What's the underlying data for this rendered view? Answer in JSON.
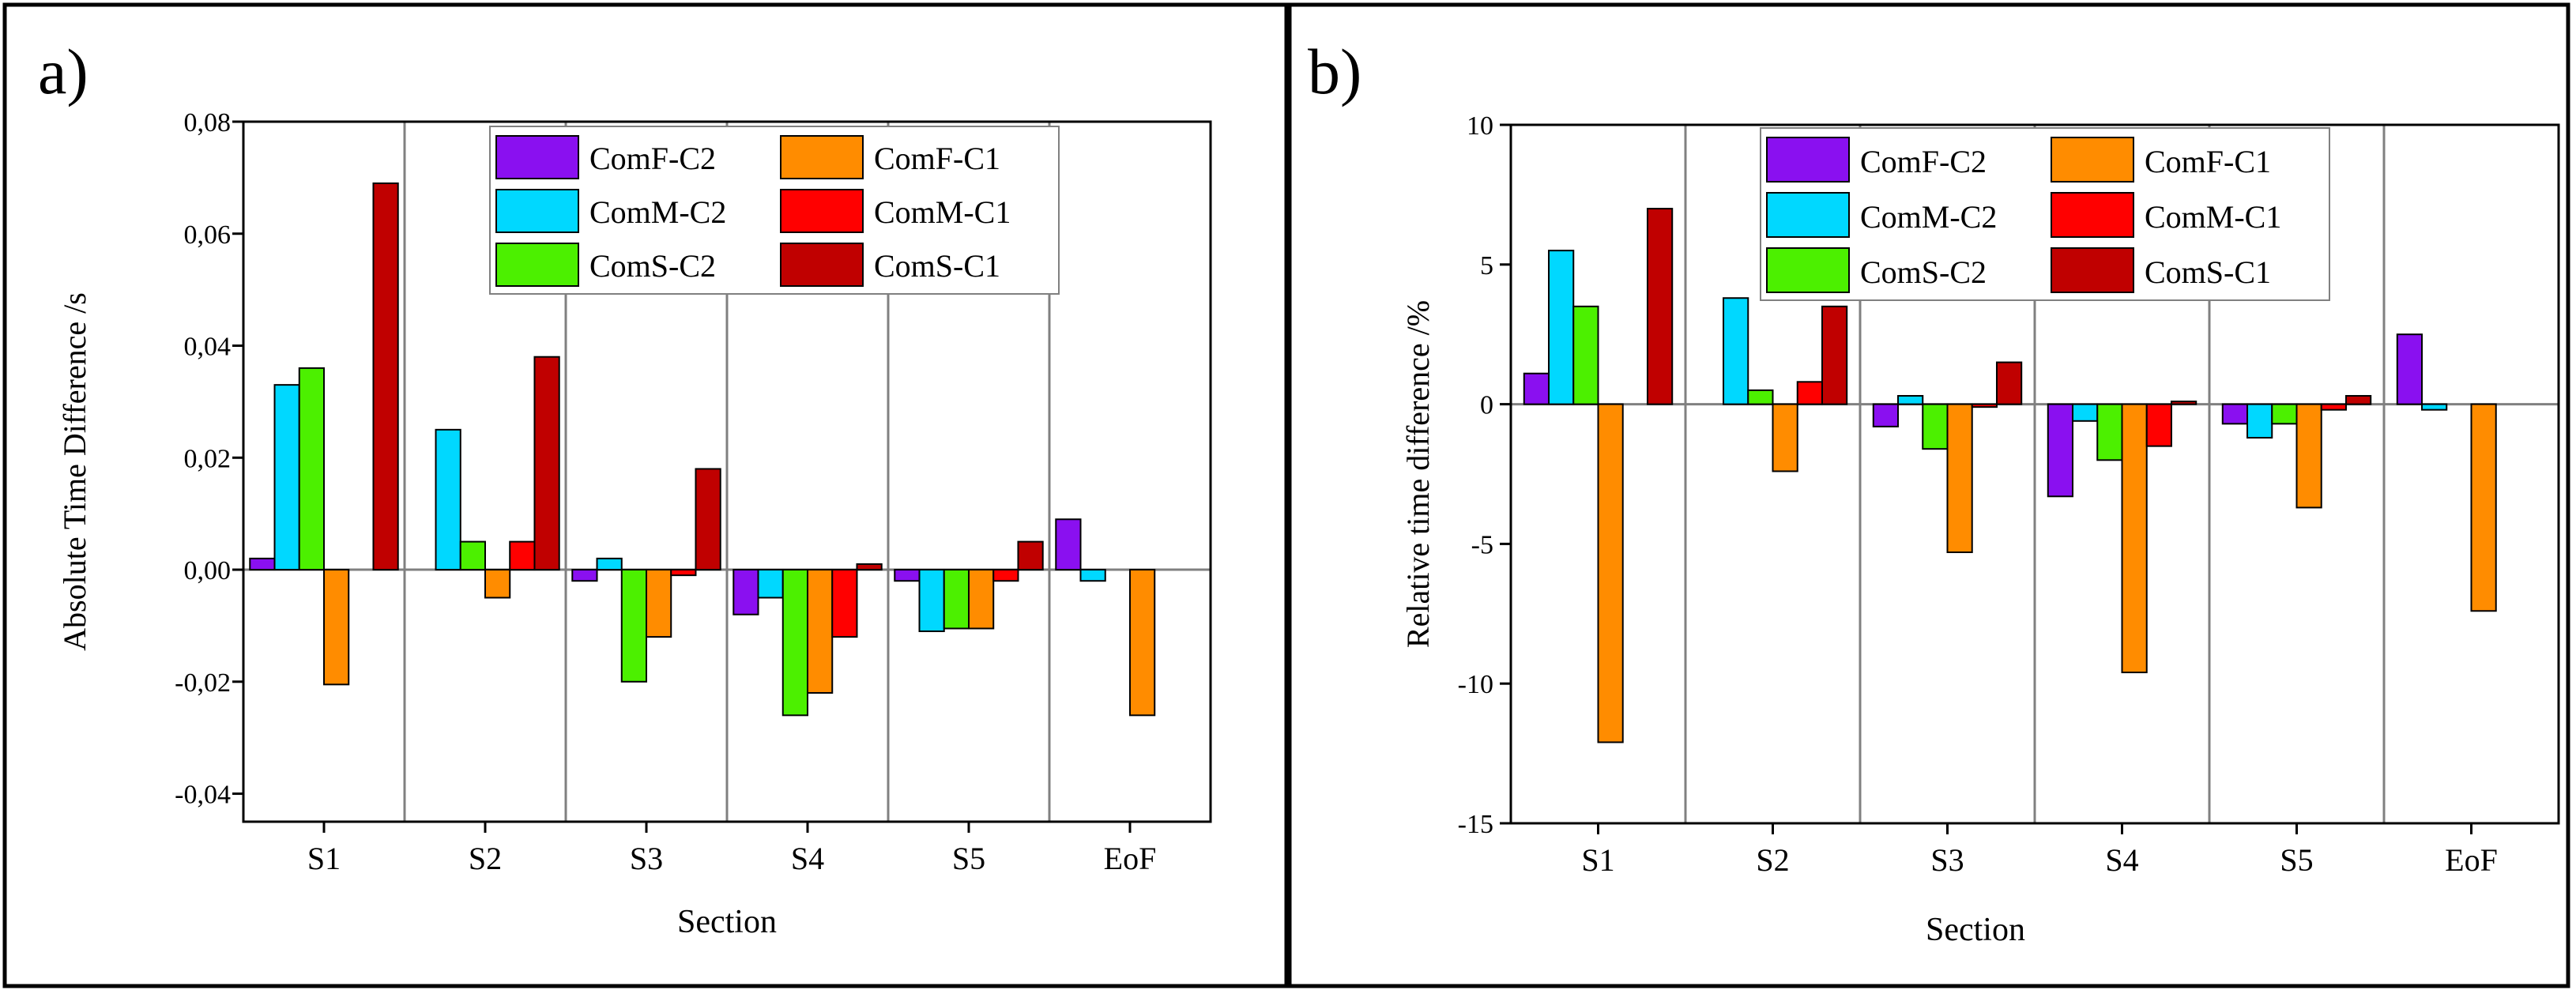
{
  "colors": {
    "ComF-C2": "#8a10f0",
    "ComM-C2": "#00d8ff",
    "ComS-C2": "#4cf000",
    "ComF-C1": "#ff8c00",
    "ComM-C1": "#ff0000",
    "ComS-C1": "#c00000"
  },
  "chart_data": [
    {
      "type": "bar",
      "panel_label": "a)",
      "xlabel": "Section",
      "ylabel": "Absolute Time Difference /s",
      "categories": [
        "S1",
        "S2",
        "S3",
        "S4",
        "S5",
        "EoF"
      ],
      "ylim": [
        -0.045,
        0.08
      ],
      "yticks": [
        -0.04,
        -0.02,
        0.0,
        0.02,
        0.04,
        0.06,
        0.08
      ],
      "ytick_labels": [
        "-0,04",
        "-0,02",
        "0,00",
        "0,02",
        "0,04",
        "0,06",
        "0,08"
      ],
      "legend": [
        "ComF-C2",
        "ComF-C1",
        "ComM-C2",
        "ComM-C1",
        "ComS-C2",
        "ComS-C1"
      ],
      "legend_position": "top-right",
      "series": [
        {
          "name": "ComF-C2",
          "values": [
            0.002,
            0.0,
            -0.002,
            -0.008,
            -0.002,
            0.009
          ]
        },
        {
          "name": "ComM-C2",
          "values": [
            0.033,
            0.025,
            0.002,
            -0.005,
            -0.011,
            -0.002
          ]
        },
        {
          "name": "ComS-C2",
          "values": [
            0.036,
            0.005,
            -0.02,
            -0.026,
            -0.0105,
            0.0
          ]
        },
        {
          "name": "ComF-C1",
          "values": [
            -0.0205,
            -0.005,
            -0.012,
            -0.022,
            -0.0105,
            -0.026
          ]
        },
        {
          "name": "ComM-C1",
          "values": [
            0.0,
            0.005,
            -0.001,
            -0.012,
            -0.002,
            0.0
          ]
        },
        {
          "name": "ComS-C1",
          "values": [
            0.069,
            0.038,
            0.018,
            0.001,
            0.005,
            0.0
          ]
        }
      ]
    },
    {
      "type": "bar",
      "panel_label": "b)",
      "xlabel": "Section",
      "ylabel": "Relative time difference /%",
      "categories": [
        "S1",
        "S2",
        "S3",
        "S4",
        "S5",
        "EoF"
      ],
      "ylim": [
        -15,
        10
      ],
      "yticks": [
        -15,
        -10,
        -5,
        0,
        5,
        10
      ],
      "ytick_labels": [
        "-15",
        "-10",
        "-5",
        "0",
        "5",
        "10"
      ],
      "legend": [
        "ComF-C2",
        "ComF-C1",
        "ComM-C2",
        "ComM-C1",
        "ComS-C2",
        "ComS-C1"
      ],
      "legend_position": "top-right",
      "series": [
        {
          "name": "ComF-C2",
          "values": [
            1.1,
            0.0,
            -0.8,
            -3.3,
            -0.7,
            2.5
          ]
        },
        {
          "name": "ComM-C2",
          "values": [
            5.5,
            3.8,
            0.3,
            -0.6,
            -1.2,
            -0.2
          ]
        },
        {
          "name": "ComS-C2",
          "values": [
            3.5,
            0.5,
            -1.6,
            -2.0,
            -0.7,
            0.0
          ]
        },
        {
          "name": "ComF-C1",
          "values": [
            -12.1,
            -2.4,
            -5.3,
            -9.6,
            -3.7,
            -7.4
          ]
        },
        {
          "name": "ComM-C1",
          "values": [
            0.0,
            0.8,
            -0.1,
            -1.5,
            -0.2,
            0.0
          ]
        },
        {
          "name": "ComS-C1",
          "values": [
            7.0,
            3.5,
            1.5,
            0.1,
            0.3,
            0.0
          ]
        }
      ]
    }
  ]
}
